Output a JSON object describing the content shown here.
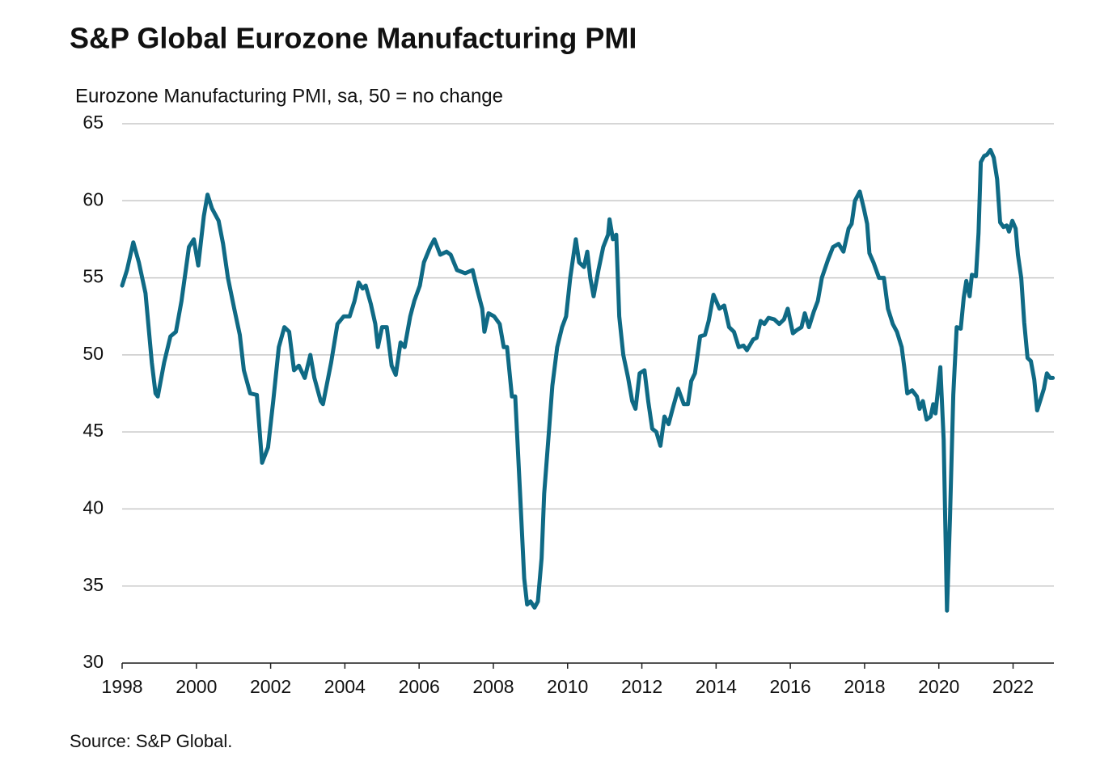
{
  "chart_data": {
    "type": "line",
    "title": "S&P Global Eurozone Manufacturing PMI",
    "subtitle": "Eurozone Manufacturing PMI, sa, 50 = no change",
    "source": "Source: S&P Global.",
    "xlim": [
      1998,
      2023.1
    ],
    "xticks": [
      1998,
      2000,
      2002,
      2004,
      2006,
      2008,
      2010,
      2012,
      2014,
      2016,
      2018,
      2020,
      2022
    ],
    "ylim": [
      30,
      65
    ],
    "yticks": [
      30,
      35,
      40,
      45,
      50,
      55,
      60,
      65
    ],
    "grid": true,
    "series": [
      {
        "name": "Eurozone Manufacturing PMI",
        "color": "#0f6a85",
        "x": [
          1998.0,
          1998.13,
          1998.3,
          1998.45,
          1998.63,
          1998.8,
          1998.9,
          1998.96,
          1999.13,
          1999.3,
          1999.45,
          1999.6,
          1999.8,
          1999.93,
          2000.05,
          2000.2,
          2000.3,
          2000.42,
          2000.6,
          2000.72,
          2000.85,
          2001.02,
          2001.17,
          2001.28,
          2001.45,
          2001.63,
          2001.77,
          2001.93,
          2002.07,
          2002.22,
          2002.37,
          2002.5,
          2002.63,
          2002.76,
          2002.92,
          2003.07,
          2003.18,
          2003.35,
          2003.41,
          2003.63,
          2003.8,
          2003.97,
          2004.13,
          2004.26,
          2004.37,
          2004.48,
          2004.56,
          2004.7,
          2004.82,
          2004.89,
          2005.0,
          2005.13,
          2005.26,
          2005.37,
          2005.5,
          2005.61,
          2005.76,
          2005.87,
          2006.02,
          2006.13,
          2006.3,
          2006.41,
          2006.57,
          2006.74,
          2006.85,
          2007.02,
          2007.24,
          2007.44,
          2007.57,
          2007.7,
          2007.76,
          2007.87,
          2008.02,
          2008.17,
          2008.28,
          2008.37,
          2008.5,
          2008.59,
          2008.72,
          2008.83,
          2008.91,
          2009.0,
          2009.11,
          2009.2,
          2009.3,
          2009.37,
          2009.48,
          2009.59,
          2009.72,
          2009.85,
          2009.96,
          2010.07,
          2010.22,
          2010.31,
          2010.44,
          2010.53,
          2010.61,
          2010.7,
          2010.83,
          2010.96,
          2011.09,
          2011.13,
          2011.22,
          2011.31,
          2011.39,
          2011.5,
          2011.63,
          2011.74,
          2011.83,
          2011.94,
          2012.07,
          2012.17,
          2012.28,
          2012.39,
          2012.5,
          2012.61,
          2012.72,
          2012.83,
          2012.98,
          2013.13,
          2013.24,
          2013.33,
          2013.43,
          2013.57,
          2013.7,
          2013.8,
          2013.93,
          2014.09,
          2014.22,
          2014.35,
          2014.48,
          2014.61,
          2014.74,
          2014.83,
          2015.0,
          2015.09,
          2015.2,
          2015.3,
          2015.41,
          2015.57,
          2015.7,
          2015.83,
          2015.93,
          2016.07,
          2016.17,
          2016.3,
          2016.39,
          2016.5,
          2016.63,
          2016.74,
          2016.85,
          2017.02,
          2017.15,
          2017.3,
          2017.43,
          2017.57,
          2017.65,
          2017.74,
          2017.87,
          2017.98,
          2018.07,
          2018.13,
          2018.24,
          2018.39,
          2018.52,
          2018.63,
          2018.76,
          2018.87,
          2019.0,
          2019.07,
          2019.15,
          2019.28,
          2019.41,
          2019.48,
          2019.57,
          2019.67,
          2019.78,
          2019.85,
          2019.91,
          2020.04,
          2020.13,
          2020.22,
          2020.3,
          2020.39,
          2020.48,
          2020.59,
          2020.67,
          2020.74,
          2020.83,
          2020.89,
          2021.0,
          2021.07,
          2021.13,
          2021.22,
          2021.3,
          2021.39,
          2021.48,
          2021.57,
          2021.65,
          2021.74,
          2021.83,
          2021.89,
          2021.98,
          2022.07,
          2022.13,
          2022.22,
          2022.3,
          2022.39,
          2022.48,
          2022.57,
          2022.65,
          2022.74,
          2022.83,
          2022.91,
          2023.0,
          2023.07
        ],
        "values": [
          54.5,
          55.5,
          57.3,
          56,
          54,
          49.5,
          47.5,
          47.3,
          49.5,
          51.2,
          51.5,
          53.5,
          57,
          57.5,
          55.8,
          59,
          60.4,
          59.5,
          58.7,
          57.2,
          55,
          53,
          51.3,
          49,
          47.5,
          47.4,
          43,
          44,
          47,
          50.5,
          51.8,
          51.5,
          49,
          49.3,
          48.5,
          50,
          48.5,
          47,
          46.8,
          49.5,
          52,
          52.5,
          52.5,
          53.5,
          54.7,
          54.3,
          54.5,
          53.3,
          52,
          50.5,
          51.8,
          51.8,
          49.3,
          48.7,
          50.8,
          50.5,
          52.5,
          53.5,
          54.5,
          56,
          57,
          57.5,
          56.5,
          56.7,
          56.5,
          55.5,
          55.3,
          55.5,
          54.2,
          53,
          51.5,
          52.7,
          52.5,
          52,
          50.5,
          50.5,
          47.3,
          47.3,
          41,
          35.5,
          33.8,
          34,
          33.6,
          34,
          36.8,
          41,
          44.5,
          48,
          50.5,
          51.8,
          52.5,
          55,
          57.5,
          56,
          55.7,
          56.7,
          55,
          53.8,
          55.5,
          57,
          57.8,
          58.8,
          57.5,
          57.8,
          52.5,
          50,
          48.5,
          47,
          46.5,
          48.8,
          49,
          47,
          45.2,
          45,
          44.1,
          46,
          45.5,
          46.5,
          47.8,
          46.8,
          46.8,
          48.3,
          48.8,
          51.2,
          51.3,
          52.2,
          53.9,
          53,
          53.2,
          51.8,
          51.5,
          50.5,
          50.6,
          50.3,
          51,
          51.1,
          52.2,
          52,
          52.4,
          52.3,
          52,
          52.3,
          53,
          51.4,
          51.6,
          51.8,
          52.7,
          51.8,
          52.8,
          53.5,
          55,
          56.2,
          57,
          57.2,
          56.7,
          58.2,
          58.5,
          60,
          60.6,
          59.5,
          58.5,
          56.6,
          56,
          55,
          55,
          53,
          52,
          51.5,
          50.5,
          49.2,
          47.5,
          47.7,
          47.3,
          46.5,
          47,
          45.8,
          46,
          46.8,
          46.2,
          49.2,
          44.5,
          33.4,
          39.4,
          47.4,
          51.8,
          51.7,
          53.7,
          54.8,
          53.8,
          55.2,
          55.1,
          57.9,
          62.5,
          62.9,
          63,
          63.3,
          62.8,
          61.4,
          58.6,
          58.3,
          58.4,
          58,
          58.7,
          58.2,
          56.5,
          55,
          52.1,
          49.8,
          49.6,
          48.4,
          46.4,
          47.1,
          47.8,
          48.8,
          48.5,
          48.5
        ]
      }
    ]
  }
}
